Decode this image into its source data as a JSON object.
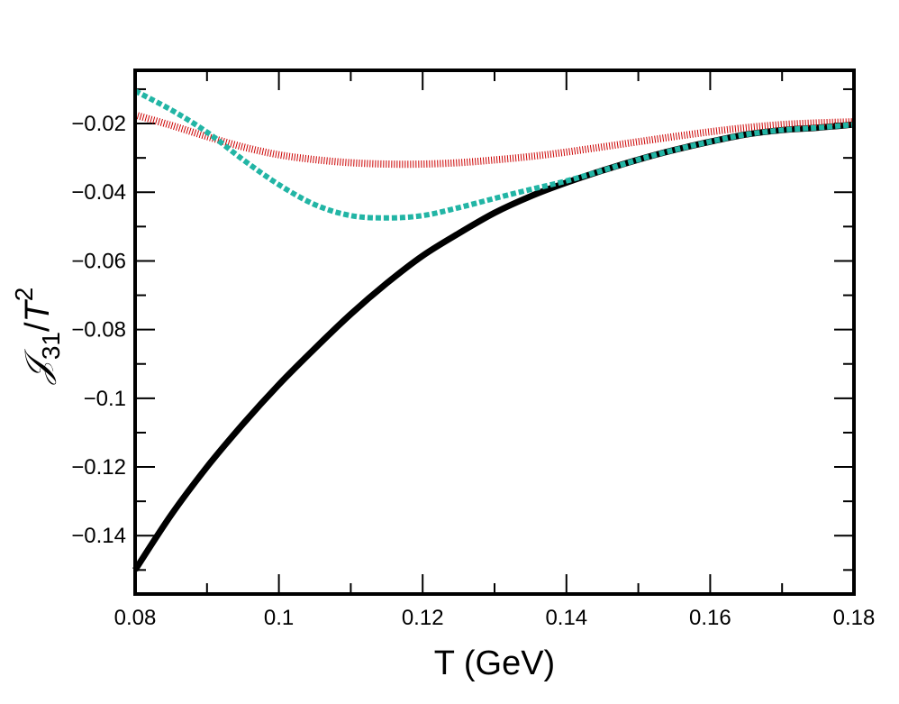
{
  "chart_data": {
    "type": "line",
    "title": "",
    "xlabel": "T (GeV)",
    "ylabel": {
      "base": "𝒥",
      "subscript": "31",
      "slash": "/",
      "var": "T",
      "superscript": "2"
    },
    "xlim": [
      0.08,
      0.18
    ],
    "ylim": [
      -0.157,
      -0.0045
    ],
    "grid": false,
    "legend": "none",
    "x_ticks": [
      0.08,
      0.1,
      0.12,
      0.14,
      0.16,
      0.18
    ],
    "x_tick_labels": [
      "0.08",
      "0.1",
      "0.12",
      "0.14",
      "0.16",
      "0.18"
    ],
    "x_minor_ticks": [
      0.09,
      0.11,
      0.13,
      0.15,
      0.17
    ],
    "y_ticks": [
      -0.14,
      -0.12,
      -0.1,
      -0.08,
      -0.06,
      -0.04,
      -0.02
    ],
    "y_tick_labels": [
      "−0.14",
      "−0.12",
      "−0.1",
      "−0.08",
      "−0.06",
      "−0.04",
      "−0.02"
    ],
    "y_minor_ticks": [
      -0.15,
      -0.13,
      -0.11,
      -0.09,
      -0.07,
      -0.05,
      -0.03,
      -0.01
    ],
    "x": [
      0.08,
      0.085,
      0.09,
      0.095,
      0.1,
      0.105,
      0.11,
      0.115,
      0.12,
      0.125,
      0.13,
      0.135,
      0.14,
      0.145,
      0.15,
      0.155,
      0.16,
      0.165,
      0.17,
      0.175,
      0.18
    ],
    "series": [
      {
        "name": "black-solid",
        "color": "#000000",
        "style": "solid",
        "values": [
          -0.15,
          -0.134,
          -0.12,
          -0.1075,
          -0.096,
          -0.0855,
          -0.0755,
          -0.0665,
          -0.0585,
          -0.052,
          -0.046,
          -0.0412,
          -0.0372,
          -0.0337,
          -0.0305,
          -0.0277,
          -0.0253,
          -0.0232,
          -0.0219,
          -0.0212,
          -0.0203
        ]
      },
      {
        "name": "teal-dotted",
        "color": "#22b5a5",
        "style": "dotted",
        "values": [
          -0.0105,
          -0.016,
          -0.0225,
          -0.0305,
          -0.0378,
          -0.0436,
          -0.0468,
          -0.0475,
          -0.0468,
          -0.0445,
          -0.0418,
          -0.0392,
          -0.0367,
          -0.0337,
          -0.0305,
          -0.0277,
          -0.0253,
          -0.0232,
          -0.0219,
          -0.0212,
          -0.0203
        ]
      },
      {
        "name": "red-hatched",
        "color": "#cc0000",
        "style": "hatched",
        "values": [
          -0.0175,
          -0.0205,
          -0.0238,
          -0.0268,
          -0.0291,
          -0.0305,
          -0.0314,
          -0.0318,
          -0.0318,
          -0.0314,
          -0.0306,
          -0.0296,
          -0.0283,
          -0.0268,
          -0.0253,
          -0.0238,
          -0.0224,
          -0.0212,
          -0.0203,
          -0.0198,
          -0.0195
        ]
      }
    ]
  }
}
